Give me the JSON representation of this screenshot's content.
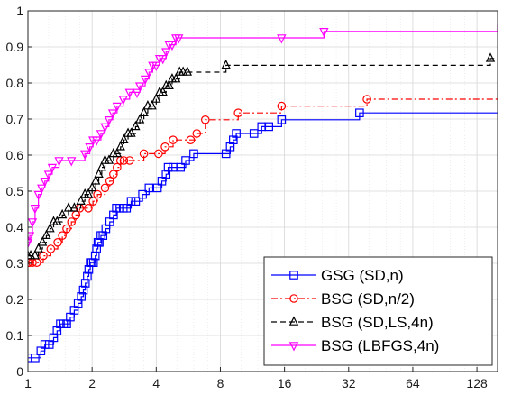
{
  "chart_data": {
    "type": "line",
    "title": "",
    "xlabel": "",
    "ylabel": "",
    "xscale": "log2",
    "xlim": [
      1,
      160
    ],
    "ylim": [
      0,
      1
    ],
    "grid": true,
    "legend_position": "bottom-right",
    "x_ticks": [
      1,
      2,
      4,
      8,
      16,
      32,
      64,
      128
    ],
    "x_tick_labels": [
      "1",
      "2",
      "4",
      "8",
      "16",
      "32",
      "64",
      "128"
    ],
    "y_ticks": [
      0,
      0.1,
      0.2,
      0.3,
      0.4,
      0.5,
      0.6,
      0.7,
      0.8,
      0.9,
      1
    ],
    "y_tick_labels": [
      "0",
      "0.1",
      "0.2",
      "0.3",
      "0.4",
      "0.5",
      "0.6",
      "0.7",
      "0.8",
      "0.9",
      "1"
    ],
    "series": [
      {
        "name": "GSG (SD,n)",
        "color": "#0000ff",
        "line_style": "solid",
        "marker": "square",
        "x": [
          1,
          1.08,
          1.15,
          1.2,
          1.26,
          1.32,
          1.37,
          1.42,
          1.47,
          1.52,
          1.58,
          1.65,
          1.72,
          1.78,
          1.82,
          1.86,
          1.9,
          1.93,
          1.96,
          1.99,
          2.03,
          2.07,
          2.1,
          2.13,
          2.16,
          2.2,
          2.25,
          2.32,
          2.42,
          2.52,
          2.6,
          2.7,
          2.8,
          2.9,
          3.05,
          3.2,
          3.45,
          3.7,
          4.05,
          4.25,
          4.45,
          4.55,
          4.8,
          5.2,
          5.5,
          6.0,
          8.5,
          8.9,
          9.2,
          9.5,
          11.5,
          12.5,
          13.5,
          15.5,
          36,
          160
        ],
        "y": [
          0.038,
          0.038,
          0.057,
          0.075,
          0.075,
          0.094,
          0.113,
          0.132,
          0.132,
          0.132,
          0.151,
          0.17,
          0.189,
          0.208,
          0.226,
          0.245,
          0.264,
          0.283,
          0.302,
          0.302,
          0.302,
          0.321,
          0.34,
          0.358,
          0.358,
          0.377,
          0.377,
          0.396,
          0.415,
          0.434,
          0.453,
          0.453,
          0.453,
          0.453,
          0.472,
          0.472,
          0.491,
          0.509,
          0.509,
          0.528,
          0.547,
          0.566,
          0.566,
          0.566,
          0.585,
          0.604,
          0.604,
          0.623,
          0.642,
          0.66,
          0.66,
          0.679,
          0.679,
          0.698,
          0.717,
          0.717
        ]
      },
      {
        "name": "BSG (SD,n/2)",
        "color": "#ff0000",
        "line_style": "dashdot",
        "marker": "circle",
        "x": [
          1,
          1.02,
          1.05,
          1.1,
          1.18,
          1.28,
          1.38,
          1.45,
          1.52,
          1.6,
          1.68,
          1.75,
          1.92,
          2.02,
          2.12,
          2.3,
          2.42,
          2.52,
          2.62,
          2.72,
          2.82,
          3.0,
          3.5,
          4.1,
          4.4,
          4.8,
          5.8,
          6.2,
          6.8,
          9.7,
          15.5,
          39,
          160
        ],
        "y": [
          0.302,
          0.302,
          0.302,
          0.302,
          0.321,
          0.34,
          0.358,
          0.377,
          0.396,
          0.415,
          0.434,
          0.453,
          0.453,
          0.472,
          0.491,
          0.509,
          0.528,
          0.547,
          0.566,
          0.585,
          0.585,
          0.585,
          0.604,
          0.604,
          0.623,
          0.642,
          0.642,
          0.66,
          0.698,
          0.717,
          0.736,
          0.755,
          0.755
        ]
      },
      {
        "name": "BSG (SD,LS,4n)",
        "color": "#000000",
        "line_style": "dashed",
        "marker": "triangle-up",
        "x": [
          1,
          1.03,
          1.08,
          1.12,
          1.17,
          1.22,
          1.27,
          1.32,
          1.37,
          1.45,
          1.55,
          1.65,
          1.77,
          1.85,
          1.92,
          2.0,
          2.08,
          2.15,
          2.22,
          2.3,
          2.4,
          2.52,
          2.62,
          2.72,
          2.82,
          2.95,
          3.05,
          3.2,
          3.35,
          3.5,
          3.65,
          3.82,
          4.0,
          4.15,
          4.3,
          4.45,
          4.6,
          4.75,
          4.95,
          5.15,
          5.35,
          5.6,
          8.5,
          148,
          155
        ],
        "y": [
          0.321,
          0.321,
          0.321,
          0.34,
          0.358,
          0.377,
          0.396,
          0.415,
          0.415,
          0.434,
          0.453,
          0.453,
          0.472,
          0.491,
          0.491,
          0.509,
          0.528,
          0.547,
          0.566,
          0.585,
          0.585,
          0.604,
          0.604,
          0.623,
          0.642,
          0.66,
          0.66,
          0.679,
          0.698,
          0.717,
          0.736,
          0.736,
          0.755,
          0.774,
          0.774,
          0.792,
          0.792,
          0.811,
          0.811,
          0.83,
          0.83,
          0.83,
          0.849,
          0.868,
          0.868
        ]
      },
      {
        "name": "BSG (LBFGS,4n)",
        "color": "#ff00ff",
        "line_style": "solid",
        "marker": "triangle-down",
        "x": [
          1,
          1.02,
          1.05,
          1.08,
          1.12,
          1.16,
          1.2,
          1.25,
          1.3,
          1.4,
          1.6,
          1.85,
          1.95,
          2.02,
          2.1,
          2.2,
          2.3,
          2.4,
          2.5,
          2.62,
          2.8,
          3.0,
          3.25,
          3.35,
          3.55,
          3.7,
          3.85,
          4.0,
          4.15,
          4.3,
          4.45,
          4.6,
          4.75,
          4.95,
          5.1,
          15.5,
          24.5,
          160
        ],
        "y": [
          0.358,
          0.377,
          0.415,
          0.453,
          0.491,
          0.509,
          0.528,
          0.547,
          0.566,
          0.585,
          0.585,
          0.604,
          0.623,
          0.642,
          0.642,
          0.66,
          0.679,
          0.698,
          0.717,
          0.736,
          0.755,
          0.774,
          0.774,
          0.792,
          0.811,
          0.83,
          0.849,
          0.849,
          0.868,
          0.868,
          0.887,
          0.906,
          0.906,
          0.925,
          0.925,
          0.925,
          0.943,
          0.962
        ]
      }
    ]
  }
}
